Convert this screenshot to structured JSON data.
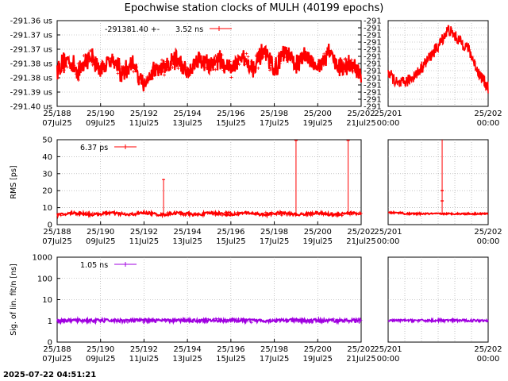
{
  "title": "Epochwise station clocks of MULH (40199 epochs)",
  "timestamp": "2025-07-22 04:51:21",
  "colors": {
    "red": "#ff0000",
    "purple": "#a000e0",
    "grid": "#a0a0a0"
  },
  "chart_data": [
    {
      "panel": "clock-main",
      "type": "line",
      "ylabel": "",
      "y_ticks": [
        "-291.36 us",
        "-291.37 us",
        "-291.37 us",
        "-291.38 us",
        "-291.38 us",
        "-291.39 us",
        "-291.40 us"
      ],
      "ylim": [
        -291.4,
        -291.36
      ],
      "x_ticks_top": [
        "25/188",
        "25/190",
        "25/192",
        "25/194",
        "25/196",
        "25/198",
        "25/200",
        "25/202"
      ],
      "x_ticks_bottom": [
        "07Jul25",
        "09Jul25",
        "11Jul25",
        "13Jul25",
        "15Jul25",
        "17Jul25",
        "19Jul25",
        "21Jul25"
      ],
      "x_range_doy": [
        188,
        202
      ],
      "legend": {
        "label": "-291381.40 +-",
        "value": "3.52 ns"
      },
      "series": [
        {
          "x": [
            188,
            188.5,
            189,
            189.5,
            190,
            190.5,
            191,
            191.5,
            192,
            192.5,
            193,
            193.5,
            194,
            194.5,
            195,
            195.5,
            196,
            196.5,
            197,
            197.5,
            198,
            198.5,
            199,
            199.5,
            200,
            200.5,
            201,
            201.5,
            202
          ],
          "y": [
            -291.3825,
            -291.378,
            -291.384,
            -291.376,
            -291.383,
            -291.377,
            -291.385,
            -291.38,
            -291.39,
            -291.383,
            -291.382,
            -291.378,
            -291.384,
            -291.377,
            -291.381,
            -291.378,
            -291.383,
            -291.377,
            -291.382,
            -291.375,
            -291.383,
            -291.375,
            -291.381,
            -291.376,
            -291.383,
            -291.374,
            -291.382,
            -291.38,
            -291.386
          ]
        }
      ]
    },
    {
      "panel": "clock-zoom",
      "type": "line",
      "y_ticks": [
        "-291",
        "-291",
        "-291",
        "-291",
        "-291",
        "-291",
        "-291",
        "-291",
        "-291",
        "-291",
        "-291",
        "-291",
        "-291"
      ],
      "x_ticks_top": [
        "25/201",
        "25/202"
      ],
      "x_ticks_bottom": [
        "00:00",
        "00:00"
      ],
      "series": [
        {
          "x": [
            0,
            0.1,
            0.2,
            0.3,
            0.4,
            0.5,
            0.6,
            0.7,
            0.8,
            0.9,
            1.0
          ],
          "y": [
            0.4,
            0.25,
            0.3,
            0.4,
            0.55,
            0.7,
            0.9,
            0.78,
            0.68,
            0.4,
            0.22
          ]
        }
      ]
    },
    {
      "panel": "rms-main",
      "type": "line",
      "ylabel": "RMS [ps]",
      "y_ticks": [
        "50",
        "40",
        "30",
        "20",
        "10",
        "0"
      ],
      "ylim": [
        0,
        50
      ],
      "x_ticks_top": [
        "25/188",
        "25/190",
        "25/192",
        "25/194",
        "25/196",
        "25/198",
        "25/200",
        "25/202"
      ],
      "x_ticks_bottom": [
        "07Jul25",
        "09Jul25",
        "11Jul25",
        "13Jul25",
        "15Jul25",
        "17Jul25",
        "19Jul25",
        "21Jul25"
      ],
      "x_range_doy": [
        188,
        202
      ],
      "legend": {
        "label": "",
        "value": "6.37 ps"
      },
      "baseline": 6.4,
      "spikes": [
        {
          "x": 192.9,
          "y": 27
        },
        {
          "x": 199.0,
          "y": 50
        },
        {
          "x": 201.4,
          "y": 50
        }
      ]
    },
    {
      "panel": "rms-zoom",
      "type": "line",
      "x_ticks_top": [
        "25/201",
        "25/202"
      ],
      "x_ticks_bottom": [
        "00:00",
        "00:00"
      ],
      "baseline": 6.4,
      "spikes": [
        {
          "x": 0.54,
          "y": 50
        }
      ]
    },
    {
      "panel": "sig-main",
      "type": "line",
      "ylabel": "Sig. of lin. fit/n [ns]",
      "y_ticks": [
        "1000",
        "100",
        "10",
        "1",
        "0"
      ],
      "yscale": "log",
      "x_ticks_top": [
        "25/188",
        "25/190",
        "25/192",
        "25/194",
        "25/196",
        "25/198",
        "25/200",
        "25/202"
      ],
      "x_ticks_bottom": [
        "07Jul25",
        "09Jul25",
        "11Jul25",
        "13Jul25",
        "15Jul25",
        "17Jul25",
        "19Jul25",
        "21Jul25"
      ],
      "x_range_doy": [
        188,
        202
      ],
      "legend": {
        "label": "",
        "value": "1.05 ns"
      },
      "baseline": 1.05
    },
    {
      "panel": "sig-zoom",
      "type": "line",
      "x_ticks_top": [
        "25/201",
        "25/202"
      ],
      "x_ticks_bottom": [
        "00:00",
        "00:00"
      ],
      "baseline": 1.05
    }
  ]
}
